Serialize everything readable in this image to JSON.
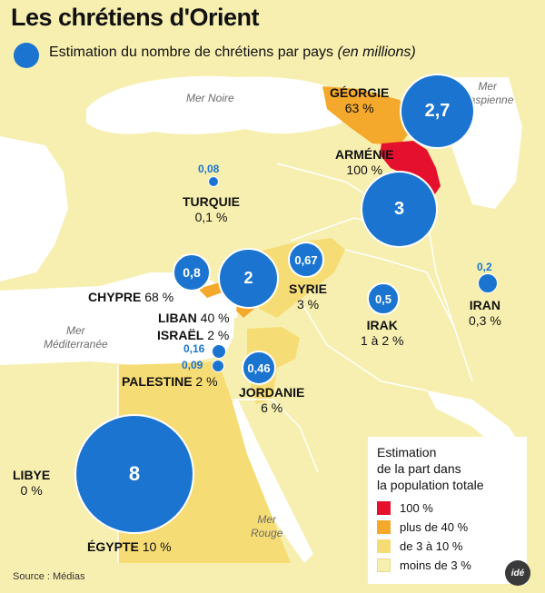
{
  "title": "Les chrétiens d'Orient",
  "subtitle": {
    "text": "Estimation du nombre de chrétiens par pays",
    "unit": "(en millions)"
  },
  "colors": {
    "bubble": "#1b75d0",
    "sea": "#ffffff",
    "land_default": "#f7efb0",
    "pct_100": "#e4102d",
    "pct_over_40": "#f4a92c",
    "pct_3_10": "#f6dc74",
    "pct_under_3": "#f7efb0"
  },
  "seas": {
    "black_sea": "Mer Noire",
    "caspian": [
      "Mer",
      "Caspienne"
    ],
    "mediterranean": [
      "Mer",
      "Méditerranée"
    ],
    "red_sea": [
      "Mer",
      "Rouge"
    ]
  },
  "countries": {
    "georgia": {
      "name": "GÉORGIE",
      "pct": "63 %",
      "value": "2,7"
    },
    "armenia": {
      "name": "ARMÉNIE",
      "pct": "100 %",
      "value": "3"
    },
    "turkey": {
      "name": "TURQUIE",
      "pct": "0,1 %",
      "value": "0,08"
    },
    "cyprus": {
      "name": "CHYPRE",
      "pct": "68 %",
      "value": "0,8"
    },
    "lebanon": {
      "name": "LIBAN",
      "pct": "40 %",
      "value": "2"
    },
    "syria": {
      "name": "SYRIE",
      "pct": "3 %",
      "value": "0,67"
    },
    "iraq": {
      "name": "IRAK",
      "pct": "1 à 2 %",
      "value": "0,5"
    },
    "iran": {
      "name": "IRAN",
      "pct": "0,3 %",
      "value": "0,2"
    },
    "israel": {
      "name": "ISRAËL",
      "pct": "2 %",
      "value": "0,16"
    },
    "palestine": {
      "name": "PALESTINE",
      "pct": "2 %",
      "value": "0,09"
    },
    "jordan": {
      "name": "JORDANIE",
      "pct": "6 %",
      "value": "0,46"
    },
    "libya": {
      "name": "LIBYE",
      "pct": "0 %"
    },
    "egypt": {
      "name": "ÉGYPTE",
      "pct": "10 %",
      "value": "8"
    }
  },
  "legend": {
    "title": [
      "Estimation",
      "de la part dans",
      "la population totale"
    ],
    "items": [
      {
        "label": "100 %",
        "color": "#e4102d"
      },
      {
        "label": "plus de 40 %",
        "color": "#f4a92c"
      },
      {
        "label": "de 3 à 10 %",
        "color": "#f6dc74"
      },
      {
        "label": "moins de 3 %",
        "color": "#f7efb0"
      }
    ]
  },
  "source": "Source : Médias",
  "logo": "idé"
}
